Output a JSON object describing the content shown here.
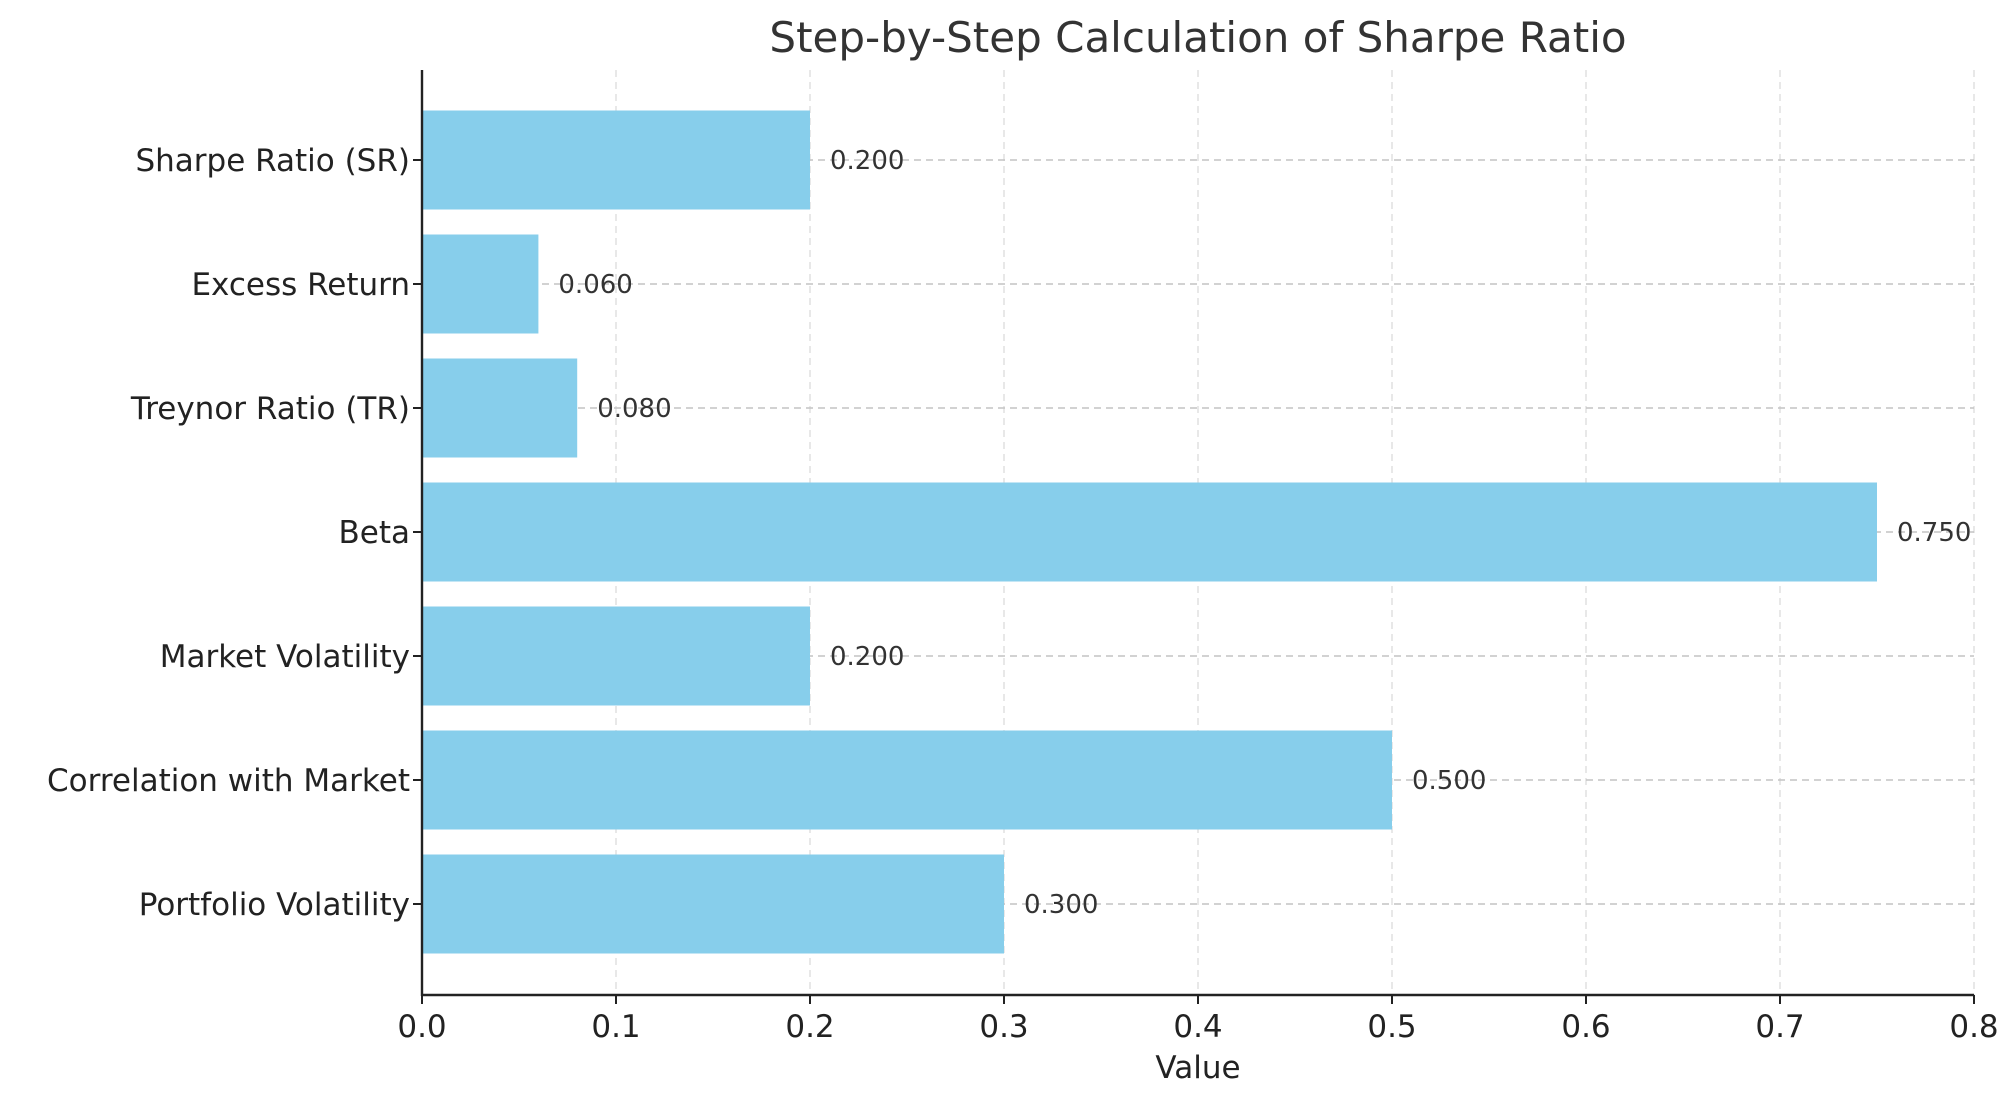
{
  "chart_data": {
    "type": "bar",
    "orientation": "horizontal",
    "title": "Step-by-Step Calculation of Sharpe Ratio",
    "xlabel": "Value",
    "ylabel": "",
    "categories": [
      "Portfolio Volatility",
      "Correlation with Market",
      "Market Volatility",
      "Beta",
      "Treynor Ratio (TR)",
      "Excess Return",
      "Sharpe Ratio (SR)"
    ],
    "values": [
      0.3,
      0.5,
      0.2,
      0.75,
      0.08,
      0.06,
      0.2
    ],
    "value_labels": [
      "0.300",
      "0.500",
      "0.200",
      "0.750",
      "0.080",
      "0.060",
      "0.200"
    ],
    "xlim": [
      0,
      0.8
    ],
    "xticks": [
      0,
      0.1,
      0.2,
      0.3,
      0.4,
      0.5,
      0.6,
      0.7,
      0.8
    ],
    "xtick_labels": [
      "0.0",
      "0.1",
      "0.2",
      "0.3",
      "0.4",
      "0.5",
      "0.6",
      "0.7",
      "0.8"
    ],
    "grid": true,
    "bar_color": "#87ceeb"
  }
}
